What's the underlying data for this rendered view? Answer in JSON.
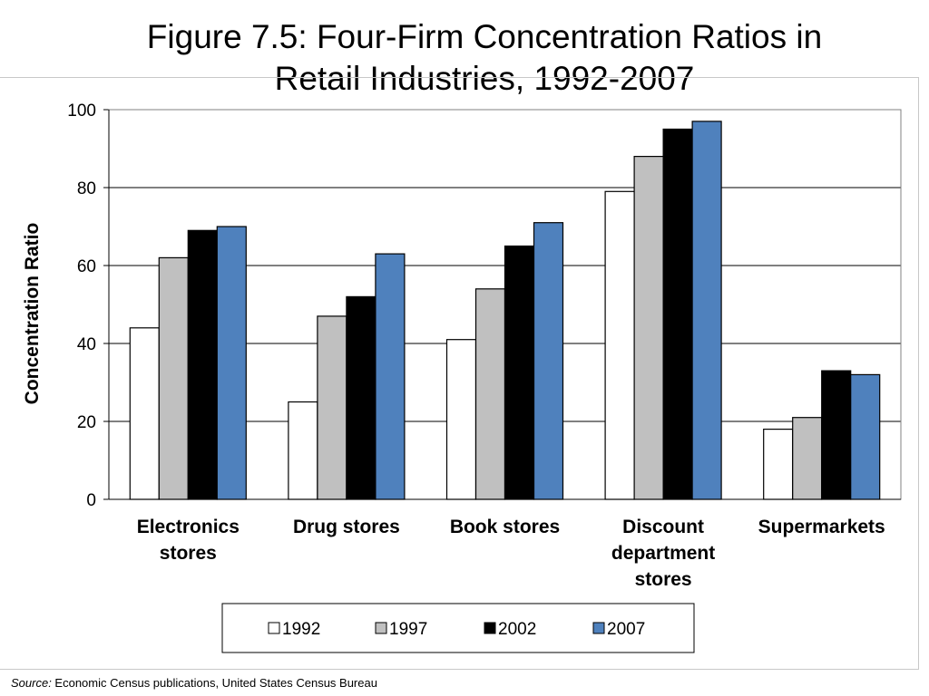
{
  "slide": {
    "title_line1": "Figure 7.5: Four-Firm Concentration Ratios in",
    "title_line2": "Retail Industries, 1992-2007",
    "source_label": "Source:",
    "source_text": " Economic Census publications, United States Census Bureau"
  },
  "chart_data": {
    "type": "bar",
    "title": "Figure 7.5: Four-Firm Concentration Ratios in Retail Industries, 1992-2007",
    "ylabel": "Concentration Ratio",
    "xlabel": "",
    "ylim": [
      0,
      100
    ],
    "yticks": [
      0,
      20,
      40,
      60,
      80,
      100
    ],
    "categories": [
      [
        "Electronics",
        "stores"
      ],
      [
        "Drug stores"
      ],
      [
        "Book stores"
      ],
      [
        "Discount",
        "department",
        "stores"
      ],
      [
        "Supermarkets"
      ]
    ],
    "series": [
      {
        "name": "1992",
        "color": "#ffffff",
        "values": [
          44,
          25,
          41,
          79,
          18
        ]
      },
      {
        "name": "1997",
        "color": "#c0c0c0",
        "values": [
          62,
          47,
          54,
          88,
          21
        ]
      },
      {
        "name": "2002",
        "color": "#000000",
        "values": [
          69,
          52,
          65,
          95,
          33
        ]
      },
      {
        "name": "2007",
        "color": "#4f81bd",
        "values": [
          70,
          63,
          71,
          97,
          32
        ]
      }
    ],
    "grid": true,
    "legend_position": "bottom"
  }
}
